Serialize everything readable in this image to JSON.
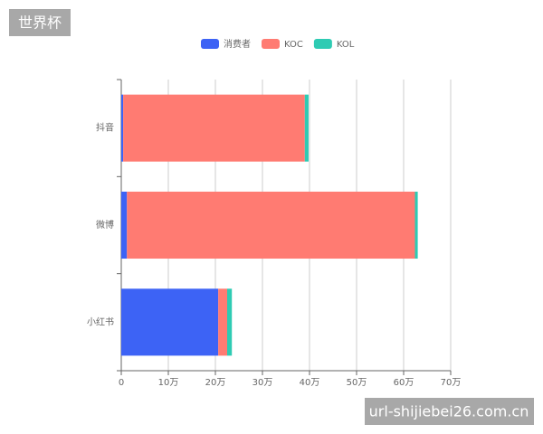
{
  "chart_data": {
    "type": "stacked_barh",
    "categories": [
      "抖音",
      "微博",
      "小红书"
    ],
    "series": [
      {
        "name": "消费者",
        "color": "#3d63f5",
        "values": [
          0.4,
          1.2,
          20.6
        ]
      },
      {
        "name": "KOC",
        "color": "#ff7b72",
        "values": [
          38.6,
          61.2,
          1.9
        ]
      },
      {
        "name": "KOL",
        "color": "#2ecbb3",
        "values": [
          0.8,
          0.6,
          1.0
        ]
      }
    ],
    "xlim": [
      0,
      70
    ],
    "xticks": [
      0,
      {
        "value": 10,
        "label": "10万"
      },
      {
        "value": 20,
        "label": "20万"
      },
      {
        "value": 30,
        "label": "30万"
      },
      {
        "value": 40,
        "label": "40万"
      },
      {
        "value": 50,
        "label": "50万"
      },
      {
        "value": 60,
        "label": "60万"
      },
      {
        "value": 70,
        "label": "70万"
      }
    ],
    "grid": true,
    "legend": "top"
  },
  "watermark": {
    "top_left": "世界杯",
    "bottom_right": "url-shijiebei26.com.cn"
  }
}
